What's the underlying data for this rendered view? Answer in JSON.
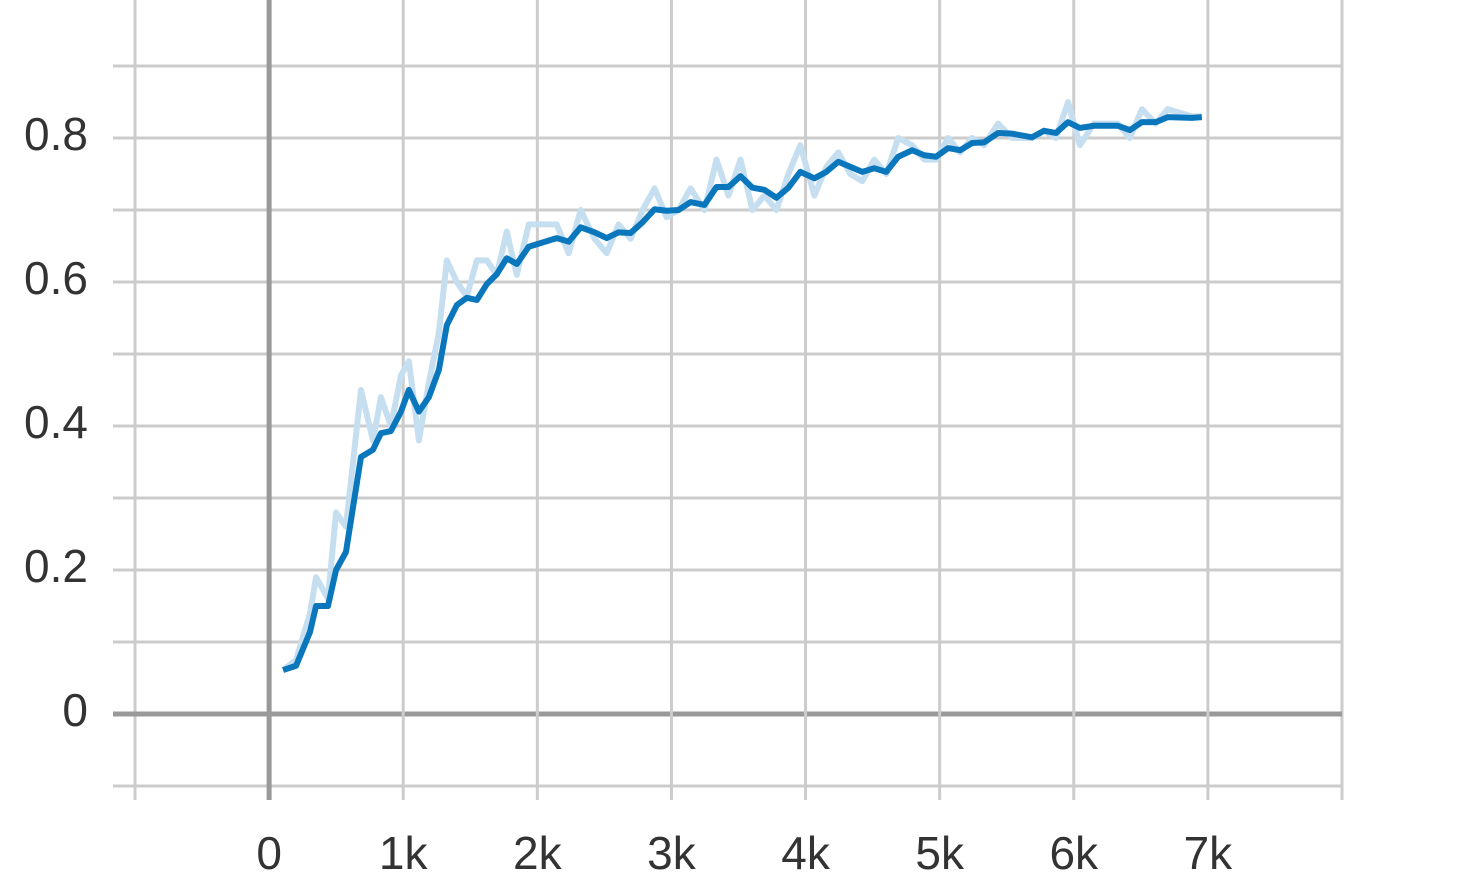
{
  "chart_data": {
    "type": "line",
    "x": [
      104,
      201,
      305,
      350,
      439,
      499,
      573,
      685,
      774,
      834,
      908,
      983,
      1042,
      1117,
      1191,
      1266,
      1325,
      1400,
      1474,
      1549,
      1623,
      1698,
      1772,
      1847,
      1936,
      2144,
      2234,
      2323,
      2427,
      2517,
      2606,
      2695,
      2785,
      2874,
      2964,
      3053,
      3142,
      3246,
      3336,
      3425,
      3515,
      3604,
      3693,
      3783,
      3872,
      3961,
      4066,
      4155,
      4244,
      4334,
      4423,
      4512,
      4602,
      4691,
      4795,
      4885,
      4974,
      5063,
      5153,
      5242,
      5331,
      5436,
      5540,
      5689,
      5778,
      5867,
      5957,
      6046,
      6150,
      6329,
      6418,
      6508,
      6612,
      6701,
      6880,
      6955
    ],
    "series": [
      {
        "color": "#c6dff0",
        "values": [
          0.061,
          0.075,
          0.14,
          0.19,
          0.16,
          0.28,
          0.26,
          0.45,
          0.38,
          0.44,
          0.4,
          0.47,
          0.49,
          0.38,
          0.46,
          0.53,
          0.63,
          0.6,
          0.58,
          0.63,
          0.63,
          0.61,
          0.67,
          0.61,
          0.68,
          0.68,
          0.64,
          0.7,
          0.66,
          0.64,
          0.68,
          0.66,
          0.7,
          0.73,
          0.69,
          0.7,
          0.73,
          0.7,
          0.77,
          0.72,
          0.77,
          0.7,
          0.72,
          0.7,
          0.75,
          0.79,
          0.72,
          0.76,
          0.78,
          0.75,
          0.74,
          0.77,
          0.75,
          0.8,
          0.79,
          0.77,
          0.77,
          0.8,
          0.78,
          0.8,
          0.79,
          0.82,
          0.8,
          0.8,
          0.81,
          0.8,
          0.85,
          0.79,
          0.82,
          0.82,
          0.8,
          0.84,
          0.82,
          0.84,
          0.83,
          0.83
        ]
      },
      {
        "color": "#0a77bd",
        "values": [
          0.061,
          0.067,
          0.114,
          0.15,
          0.15,
          0.2,
          0.225,
          0.357,
          0.367,
          0.39,
          0.393,
          0.42,
          0.45,
          0.42,
          0.44,
          0.478,
          0.54,
          0.568,
          0.578,
          0.575,
          0.597,
          0.611,
          0.633,
          0.625,
          0.649,
          0.661,
          0.656,
          0.676,
          0.669,
          0.661,
          0.669,
          0.668,
          0.683,
          0.701,
          0.699,
          0.7,
          0.711,
          0.707,
          0.732,
          0.732,
          0.747,
          0.731,
          0.728,
          0.717,
          0.731,
          0.753,
          0.744,
          0.753,
          0.767,
          0.76,
          0.753,
          0.758,
          0.753,
          0.774,
          0.783,
          0.776,
          0.774,
          0.786,
          0.783,
          0.793,
          0.794,
          0.807,
          0.806,
          0.801,
          0.81,
          0.807,
          0.822,
          0.814,
          0.817,
          0.817,
          0.811,
          0.822,
          0.822,
          0.829,
          0.828,
          0.829
        ]
      }
    ],
    "xlim": [
      -1000,
      8000
    ],
    "xticks": [
      0,
      {
        "value": 1000,
        "label": "1k"
      },
      {
        "value": 2000,
        "label": "2k"
      },
      {
        "value": 3000,
        "label": "3k"
      },
      {
        "value": 4000,
        "label": "4k"
      },
      {
        "value": 5000,
        "label": "5k"
      },
      {
        "value": 6000,
        "label": "6k"
      },
      {
        "value": 7000,
        "label": "7k"
      }
    ],
    "ylim": [
      -0.1,
      0.99
    ],
    "yticks": [
      0,
      0.2,
      0.4,
      0.6,
      0.8
    ],
    "yticks_minor": [
      -0.1,
      0.1,
      0.3,
      0.5,
      0.7,
      0.9
    ],
    "grid": true
  }
}
